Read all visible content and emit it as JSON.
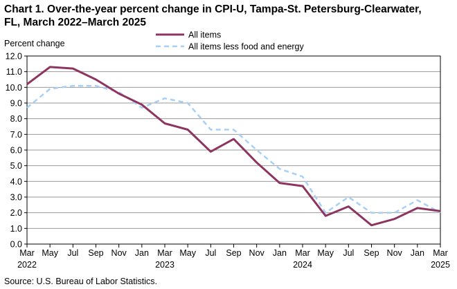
{
  "chart_data": {
    "type": "line",
    "title_line1": "Chart 1. Over-the-year percent change in CPI-U, Tampa-St. Petersburg-Clearwater,",
    "title_line2": "FL, March 2022–March 2025",
    "ylabel": "Percent change",
    "ylim": [
      0,
      12
    ],
    "yticks": [
      "0.0",
      "1.0",
      "2.0",
      "3.0",
      "4.0",
      "5.0",
      "6.0",
      "7.0",
      "8.0",
      "9.0",
      "10.0",
      "11.0",
      "12.0"
    ],
    "categories": [
      "Mar",
      "May",
      "Jul",
      "Sep",
      "Nov",
      "Jan",
      "Mar",
      "May",
      "Jul",
      "Sep",
      "Nov",
      "Jan",
      "Mar",
      "May",
      "Jul",
      "Sep",
      "Nov",
      "Jan",
      "Mar"
    ],
    "years": [
      {
        "label": "2022",
        "index": 0
      },
      {
        "label": "2023",
        "index": 6
      },
      {
        "label": "2024",
        "index": 12
      },
      {
        "label": "2025",
        "index": 18
      }
    ],
    "grid": true,
    "legend_position": "top-center",
    "series": [
      {
        "name": "All items",
        "color": "#8e3460",
        "style": "solid",
        "values": [
          10.2,
          11.3,
          11.2,
          10.5,
          9.6,
          8.9,
          7.7,
          7.3,
          5.9,
          6.7,
          5.2,
          3.9,
          3.7,
          1.8,
          2.4,
          1.2,
          1.6,
          2.3,
          2.1
        ]
      },
      {
        "name": "All items less food and energy",
        "color": "#a8cff5",
        "style": "dashed",
        "values": [
          8.7,
          9.9,
          10.1,
          10.1,
          9.7,
          8.7,
          9.3,
          9.0,
          7.3,
          7.3,
          6.0,
          4.8,
          4.3,
          2.0,
          3.0,
          2.0,
          2.0,
          2.8,
          2.0
        ]
      }
    ]
  },
  "source": "Source: U.S. Bureau of Labor Statistics."
}
